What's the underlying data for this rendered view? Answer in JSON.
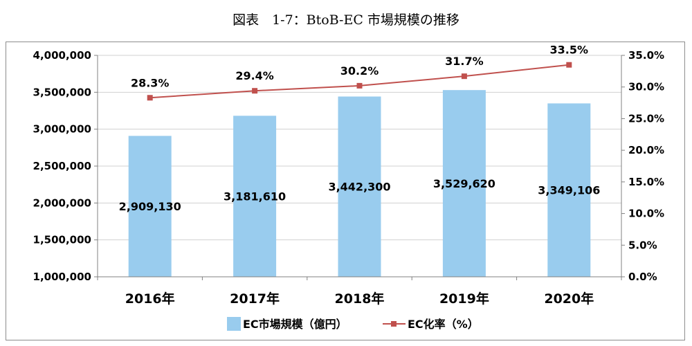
{
  "caption": "図表　1-7：BtoB-EC 市場規模の推移",
  "chart_data": {
    "type": "bar",
    "categories": [
      "2016年",
      "2017年",
      "2018年",
      "2019年",
      "2020年"
    ],
    "series": [
      {
        "name": "EC市場規模（億円）",
        "type": "bar",
        "axis": "left",
        "color": "#99ccee",
        "values": [
          2909130,
          3181610,
          3442300,
          3529620,
          3349106
        ],
        "labels": [
          "2,909,130",
          "3,181,610",
          "3,442,300",
          "3,529,620",
          "3,349,106"
        ]
      },
      {
        "name": "EC化率（%）",
        "type": "line",
        "axis": "right",
        "color": "#c0504d",
        "values": [
          28.3,
          29.4,
          30.2,
          31.7,
          33.5
        ],
        "labels": [
          "28.3%",
          "29.4%",
          "30.2%",
          "31.7%",
          "33.5%"
        ]
      }
    ],
    "y_left": {
      "range": [
        1000000,
        4000000
      ],
      "ticks": [
        "1,000,000",
        "1,500,000",
        "2,000,000",
        "2,500,000",
        "3,000,000",
        "3,500,000",
        "4,000,000"
      ],
      "tick_values": [
        1000000,
        1500000,
        2000000,
        2500000,
        3000000,
        3500000,
        4000000
      ]
    },
    "y_right": {
      "range": [
        0,
        35
      ],
      "ticks": [
        "0.0%",
        "5.0%",
        "10.0%",
        "15.0%",
        "20.0%",
        "25.0%",
        "30.0%",
        "35.0%"
      ],
      "tick_values": [
        0,
        5,
        10,
        15,
        20,
        25,
        30,
        35
      ]
    },
    "grid": true,
    "legend_position": "bottom"
  }
}
